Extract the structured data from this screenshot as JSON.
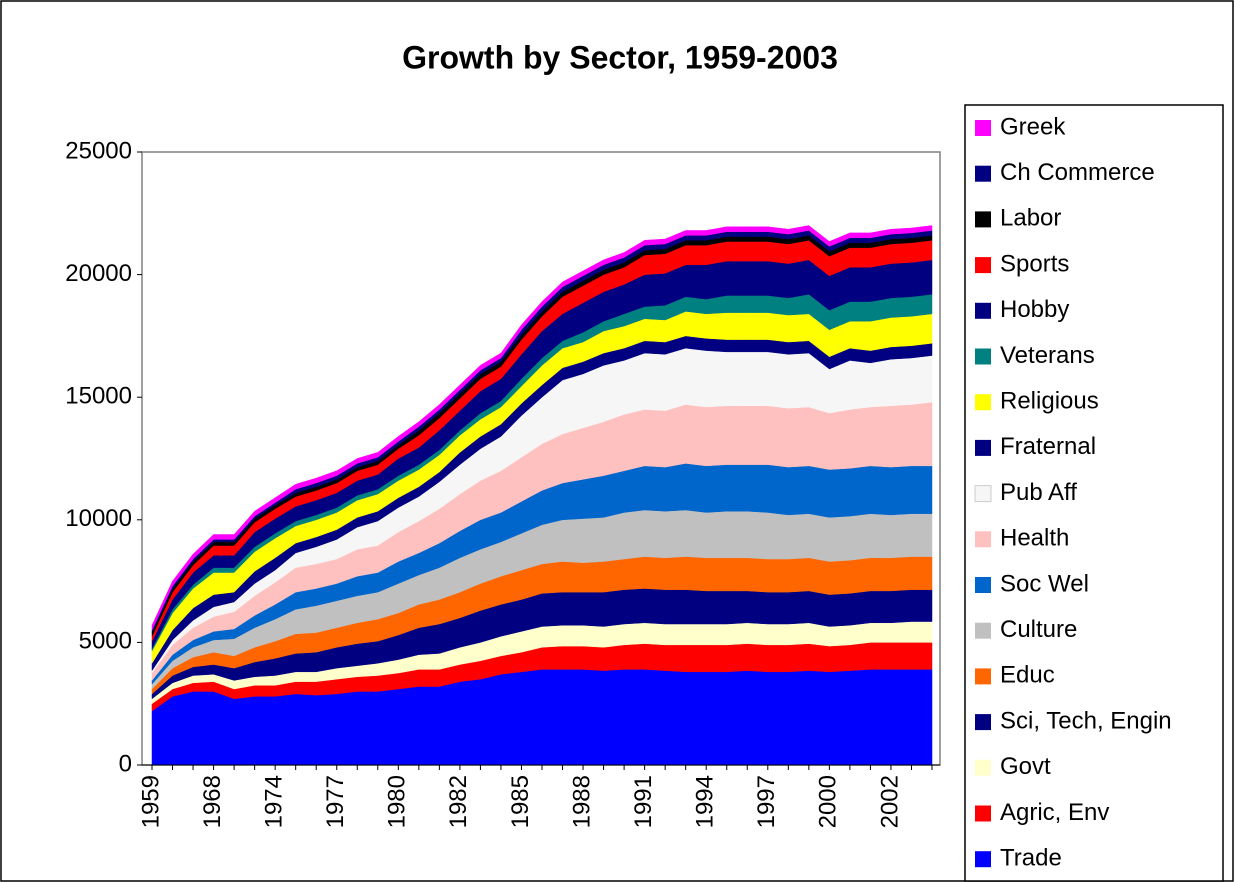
{
  "chart_data": {
    "type": "stacked_area",
    "title": "Growth by Sector, 1959-2003",
    "categories": [
      "1959",
      null,
      null,
      "1968",
      null,
      null,
      "1974",
      null,
      null,
      "1977",
      null,
      null,
      "1980",
      null,
      null,
      "1982",
      null,
      null,
      "1985",
      null,
      null,
      "1988",
      null,
      null,
      "1991",
      null,
      null,
      "1994",
      null,
      null,
      "1997",
      null,
      null,
      "2000",
      null,
      null,
      "2002",
      null,
      null
    ],
    "ylim": [
      0,
      25000
    ],
    "yticks": [
      0,
      5000,
      10000,
      15000,
      20000,
      25000
    ],
    "grid": false,
    "legend": "right",
    "series": [
      {
        "name": "Trade",
        "color": "#0000ff",
        "values": [
          2200,
          2800,
          3000,
          3000,
          2700,
          2800,
          2800,
          2900,
          2850,
          2900,
          3000,
          3000,
          3100,
          3200,
          3200,
          3400,
          3500,
          3700,
          3800,
          3900,
          3900,
          3900,
          3850,
          3900,
          3900,
          3850,
          3800,
          3800,
          3800,
          3850,
          3800,
          3800,
          3850,
          3800,
          3850,
          3900,
          3900,
          3900,
          3900
        ]
      },
      {
        "name": "Agric, Env",
        "color": "#ff0000",
        "values": [
          300,
          300,
          350,
          400,
          400,
          450,
          450,
          500,
          550,
          600,
          600,
          650,
          650,
          700,
          700,
          700,
          750,
          750,
          800,
          900,
          950,
          950,
          950,
          1000,
          1050,
          1050,
          1100,
          1100,
          1100,
          1100,
          1100,
          1100,
          1100,
          1050,
          1050,
          1100,
          1100,
          1100,
          1100
        ]
      },
      {
        "name": "Govt",
        "color": "#ffffcc",
        "values": [
          200,
          250,
          300,
          300,
          350,
          350,
          400,
          400,
          400,
          450,
          450,
          500,
          550,
          600,
          650,
          700,
          750,
          800,
          850,
          850,
          850,
          850,
          850,
          850,
          850,
          850,
          850,
          850,
          850,
          850,
          850,
          850,
          850,
          800,
          800,
          800,
          800,
          850,
          850
        ]
      },
      {
        "name": "Sci, Tech, Engin",
        "color": "#000080",
        "values": [
          200,
          300,
          350,
          400,
          500,
          600,
          700,
          750,
          800,
          850,
          900,
          900,
          1000,
          1100,
          1200,
          1200,
          1300,
          1300,
          1300,
          1350,
          1350,
          1350,
          1400,
          1400,
          1400,
          1400,
          1400,
          1350,
          1350,
          1300,
          1300,
          1300,
          1300,
          1300,
          1300,
          1300,
          1300,
          1300,
          1300
        ]
      },
      {
        "name": "Educ",
        "color": "#ff6600",
        "values": [
          200,
          300,
          400,
          500,
          500,
          600,
          700,
          800,
          800,
          800,
          850,
          900,
          900,
          950,
          1000,
          1050,
          1100,
          1150,
          1200,
          1200,
          1250,
          1200,
          1250,
          1250,
          1300,
          1300,
          1350,
          1350,
          1350,
          1350,
          1350,
          1350,
          1350,
          1350,
          1350,
          1350,
          1350,
          1350,
          1350
        ]
      },
      {
        "name": "Culture",
        "color": "#c0c0c0",
        "values": [
          200,
          300,
          400,
          500,
          700,
          800,
          900,
          1000,
          1100,
          1100,
          1100,
          1100,
          1200,
          1200,
          1300,
          1400,
          1400,
          1400,
          1500,
          1600,
          1700,
          1800,
          1800,
          1900,
          1900,
          1900,
          1900,
          1850,
          1900,
          1900,
          1900,
          1800,
          1800,
          1800,
          1800,
          1800,
          1750,
          1750,
          1750
        ]
      },
      {
        "name": "Soc Wel",
        "color": "#0066cc",
        "values": [
          150,
          250,
          300,
          350,
          400,
          500,
          600,
          700,
          700,
          700,
          800,
          800,
          900,
          900,
          1000,
          1100,
          1200,
          1200,
          1300,
          1400,
          1500,
          1600,
          1700,
          1700,
          1800,
          1800,
          1900,
          1900,
          1900,
          1900,
          1950,
          1950,
          1950,
          1950,
          1950,
          1950,
          1950,
          1950,
          1950
        ]
      },
      {
        "name": "Health",
        "color": "#ffc0c0",
        "values": [
          300,
          400,
          500,
          600,
          700,
          800,
          900,
          1000,
          1000,
          1000,
          1100,
          1100,
          1200,
          1300,
          1400,
          1500,
          1600,
          1700,
          1800,
          1900,
          2000,
          2100,
          2200,
          2300,
          2300,
          2300,
          2400,
          2400,
          2400,
          2400,
          2400,
          2400,
          2400,
          2300,
          2400,
          2400,
          2500,
          2500,
          2600
        ]
      },
      {
        "name": "Pub Aff",
        "color": "#f6f6f6",
        "values": [
          100,
          200,
          300,
          400,
          400,
          500,
          500,
          600,
          700,
          800,
          900,
          1000,
          1000,
          1000,
          1100,
          1200,
          1300,
          1400,
          1700,
          1900,
          2200,
          2200,
          2300,
          2200,
          2300,
          2300,
          2300,
          2300,
          2200,
          2200,
          2200,
          2200,
          2200,
          1800,
          2000,
          1800,
          1900,
          1900,
          1900
        ]
      },
      {
        "name": "Fraternal",
        "color": "#000080",
        "values": [
          300,
          400,
          500,
          500,
          400,
          500,
          500,
          400,
          400,
          400,
          400,
          400,
          400,
          400,
          400,
          500,
          500,
          500,
          500,
          500,
          500,
          500,
          500,
          500,
          500,
          500,
          500,
          500,
          500,
          500,
          500,
          500,
          500,
          500,
          500,
          500,
          500,
          500,
          500
        ]
      },
      {
        "name": "Religious",
        "color": "#ffff00",
        "values": [
          500,
          700,
          800,
          900,
          800,
          800,
          800,
          700,
          700,
          700,
          700,
          700,
          700,
          700,
          700,
          700,
          700,
          700,
          700,
          800,
          800,
          800,
          900,
          900,
          900,
          900,
          1000,
          1000,
          1100,
          1100,
          1100,
          1100,
          1100,
          1100,
          1100,
          1200,
          1200,
          1200,
          1200
        ]
      },
      {
        "name": "Veterans",
        "color": "#008080",
        "values": [
          100,
          150,
          150,
          200,
          200,
          200,
          200,
          200,
          200,
          200,
          200,
          200,
          200,
          200,
          200,
          200,
          250,
          250,
          300,
          300,
          300,
          400,
          400,
          500,
          500,
          600,
          600,
          600,
          700,
          700,
          700,
          700,
          800,
          800,
          800,
          800,
          800,
          800,
          800
        ]
      },
      {
        "name": "Hobby",
        "color": "#000080",
        "values": [
          300,
          400,
          500,
          500,
          500,
          600,
          600,
          600,
          600,
          600,
          600,
          600,
          700,
          700,
          800,
          800,
          900,
          900,
          1000,
          1100,
          1100,
          1200,
          1200,
          1200,
          1300,
          1300,
          1300,
          1400,
          1400,
          1400,
          1400,
          1400,
          1400,
          1400,
          1400,
          1400,
          1400,
          1400,
          1400
        ]
      },
      {
        "name": "Sports",
        "color": "#ff0000",
        "values": [
          200,
          300,
          300,
          400,
          400,
          400,
          400,
          400,
          400,
          400,
          400,
          400,
          400,
          500,
          500,
          500,
          500,
          500,
          600,
          600,
          700,
          700,
          700,
          700,
          800,
          800,
          800,
          800,
          800,
          800,
          800,
          800,
          800,
          800,
          800,
          800,
          800,
          800,
          800
        ]
      },
      {
        "name": "Labor",
        "color": "#000000",
        "values": [
          150,
          150,
          150,
          150,
          150,
          150,
          150,
          150,
          150,
          150,
          150,
          150,
          150,
          200,
          200,
          200,
          200,
          200,
          200,
          200,
          200,
          200,
          200,
          200,
          200,
          200,
          200,
          200,
          200,
          200,
          200,
          200,
          200,
          200,
          200,
          200,
          200,
          200,
          200
        ]
      },
      {
        "name": "Ch Commerce",
        "color": "#000080",
        "values": [
          100,
          100,
          100,
          100,
          100,
          100,
          100,
          150,
          150,
          150,
          150,
          150,
          150,
          150,
          150,
          150,
          150,
          150,
          200,
          200,
          200,
          200,
          200,
          200,
          200,
          200,
          200,
          200,
          200,
          200,
          200,
          200,
          200,
          200,
          200,
          200,
          200,
          200,
          200
        ]
      },
      {
        "name": "Greek",
        "color": "#ff00ff",
        "values": [
          200,
          200,
          200,
          200,
          200,
          200,
          200,
          200,
          200,
          200,
          200,
          200,
          200,
          200,
          200,
          200,
          200,
          200,
          200,
          200,
          200,
          200,
          200,
          200,
          200,
          200,
          200,
          200,
          200,
          200,
          200,
          200,
          200,
          200,
          200,
          200,
          200,
          200,
          200
        ]
      }
    ]
  }
}
